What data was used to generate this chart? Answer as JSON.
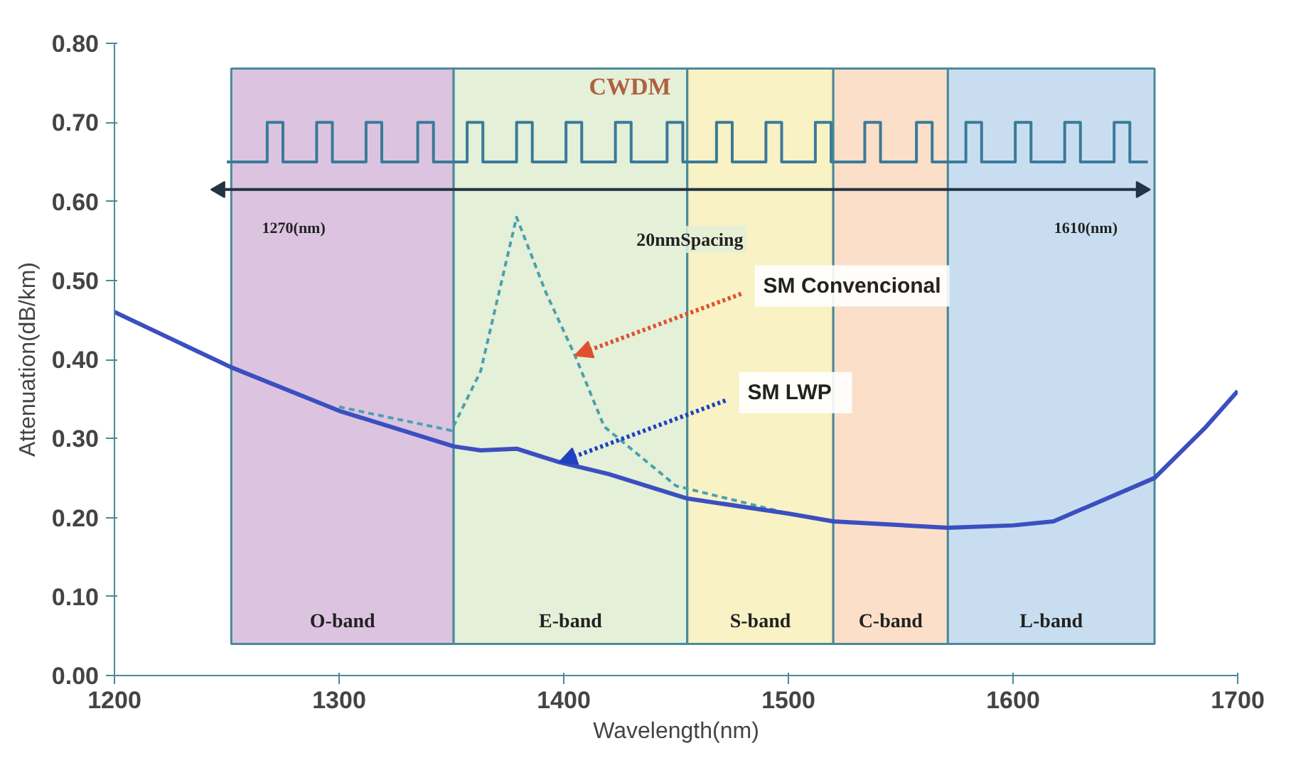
{
  "chart_data": {
    "type": "line",
    "xlabel": "Wavelength(nm)",
    "ylabel": "Attenuation(dB/km)",
    "xlim": [
      1200,
      1700
    ],
    "ylim": [
      0,
      0.8
    ],
    "xticks": [
      1200,
      1300,
      1400,
      1500,
      1600,
      1700
    ],
    "yticks": [
      {
        "value": 0,
        "label": "0.00"
      },
      {
        "value": 0.1,
        "label": "0.10"
      },
      {
        "value": 0.2,
        "label": "0.20"
      },
      {
        "value": 0.3,
        "label": "0.30"
      },
      {
        "value": 0.4,
        "label": "0.40"
      },
      {
        "value": 0.5,
        "label": "0.50"
      },
      {
        "value": 0.6,
        "label": "0.60"
      },
      {
        "value": 0.7,
        "label": "0.70"
      },
      {
        "value": 0.8,
        "label": "0.80"
      }
    ],
    "bands": [
      {
        "axis": "x",
        "from": 1252,
        "to": 1351,
        "label": "O-band",
        "color": "#dcc4e0"
      },
      {
        "axis": "x",
        "from": 1351,
        "to": 1455,
        "label": "E-band",
        "color": "#e4f0d8"
      },
      {
        "axis": "x",
        "from": 1455,
        "to": 1520,
        "label": "S-band",
        "color": "#f8f2c4"
      },
      {
        "axis": "x",
        "from": 1520,
        "to": 1571,
        "label": "C-band",
        "color": "#fbdfc8"
      },
      {
        "axis": "x",
        "from": 1571,
        "to": 1663,
        "label": "L-band",
        "color": "#c8def0"
      }
    ],
    "series": [
      {
        "color": "#4aa0b0",
        "line_style": "dashed",
        "x": [
          1300,
          1350,
          1363,
          1379,
          1392,
          1405,
          1418,
          1450,
          1500
        ],
        "values": [
          0.34,
          0.31,
          0.385,
          0.58,
          0.485,
          0.405,
          0.315,
          0.24,
          0.205
        ]
      },
      {
        "color": "#3b4fc0",
        "line_style": "solid",
        "x": [
          1200,
          1252,
          1300,
          1351,
          1363,
          1379,
          1398,
          1420,
          1455,
          1500,
          1520,
          1571,
          1600,
          1618,
          1663,
          1686,
          1700
        ],
        "values": [
          0.46,
          0.39,
          0.335,
          0.29,
          0.285,
          0.287,
          0.27,
          0.255,
          0.224,
          0.205,
          0.195,
          0.187,
          0.19,
          0.195,
          0.25,
          0.315,
          0.36
        ]
      },
      {
        "color": "#3a7a9a",
        "line_style": "solid",
        "x": [
          1250,
          1268,
          1268,
          1275,
          1275,
          1290,
          1290,
          1297,
          1297,
          1312,
          1312,
          1319,
          1319,
          1335,
          1335,
          1342,
          1342,
          1357,
          1357,
          1364,
          1364,
          1379,
          1379,
          1386,
          1386,
          1401,
          1401,
          1408,
          1408,
          1423,
          1423,
          1430,
          1430,
          1446,
          1446,
          1453,
          1453,
          1468,
          1468,
          1475,
          1475,
          1490,
          1490,
          1497,
          1497,
          1512,
          1512,
          1519,
          1519,
          1534,
          1534,
          1541,
          1541,
          1557,
          1557,
          1564,
          1564,
          1579,
          1579,
          1586,
          1586,
          1601,
          1601,
          1608,
          1608,
          1623,
          1623,
          1630,
          1630,
          1645,
          1645,
          1652,
          1652,
          1660
        ],
        "values": [
          0.65,
          0.65,
          0.7,
          0.7,
          0.65,
          0.65,
          0.7,
          0.7,
          0.65,
          0.65,
          0.7,
          0.7,
          0.65,
          0.65,
          0.7,
          0.7,
          0.65,
          0.65,
          0.7,
          0.7,
          0.65,
          0.65,
          0.7,
          0.7,
          0.65,
          0.65,
          0.7,
          0.7,
          0.65,
          0.65,
          0.7,
          0.7,
          0.65,
          0.65,
          0.7,
          0.7,
          0.65,
          0.65,
          0.7,
          0.7,
          0.65,
          0.65,
          0.7,
          0.7,
          0.65,
          0.65,
          0.7,
          0.7,
          0.65,
          0.65,
          0.7,
          0.7,
          0.65,
          0.65,
          0.7,
          0.7,
          0.65,
          0.65,
          0.7,
          0.7,
          0.65,
          0.65,
          0.7,
          0.7,
          0.65,
          0.65,
          0.7,
          0.7,
          0.65,
          0.65,
          0.7,
          0.7,
          0.65,
          0.65
        ]
      },
      {
        "color": "#223344",
        "line_style": "solid",
        "marker": "triangle",
        "x": [
          1247,
          1657
        ],
        "values": [
          0.615,
          0.615
        ]
      }
    ],
    "annotations": [
      "CWDM",
      "1270(nm)",
      "1610(nm)",
      "20nmSpacing",
      {
        "text": "SM Convencional",
        "x": 1405,
        "y": 0.405
      },
      {
        "text": "SM   LWP",
        "x": 1398,
        "y": 0.27
      }
    ]
  }
}
